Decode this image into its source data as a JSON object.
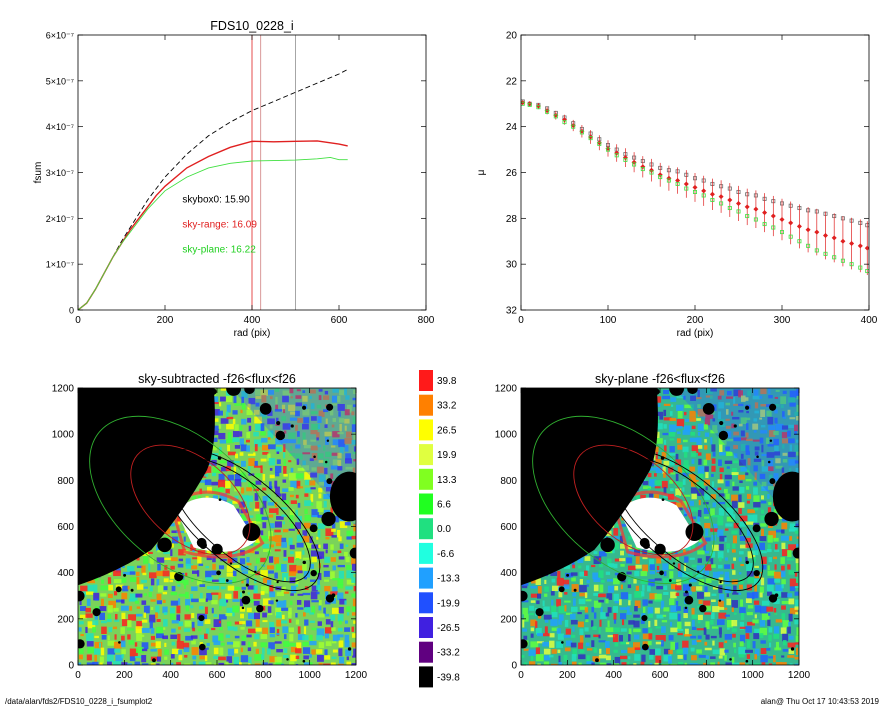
{
  "footer": {
    "path": "/data/alan/fds2/FDS10_0228_i_fsumplot2",
    "stamp": "alan@  Thu Oct 17 10:43:53 2019"
  },
  "chart_data": [
    {
      "type": "line",
      "title": "FDS10_0228_i",
      "xlabel": "rad (pix)",
      "ylabel": "fsum",
      "xlim": [
        0,
        800
      ],
      "ylim": [
        0,
        6e-07
      ],
      "xticks": [
        "0",
        "200",
        "400",
        "600",
        "800"
      ],
      "yticks": [
        "0",
        "1×10⁻⁷",
        "2×10⁻⁷",
        "3×10⁻⁷",
        "4×10⁻⁷",
        "5×10⁻⁷",
        "6×10⁻⁷"
      ],
      "vlines": [
        {
          "x": 400,
          "color": "#e02020"
        },
        {
          "x": 420,
          "color": "#d08080"
        },
        {
          "x": 500,
          "color": "#909090"
        }
      ],
      "annotations": [
        {
          "text": "skybox0: 15.90",
          "color": "#000000"
        },
        {
          "text": "sky-range: 16.09",
          "color": "#e02020"
        },
        {
          "text": "sky-plane: 16.22",
          "color": "#20d020"
        }
      ],
      "series": [
        {
          "color": "#000000",
          "dashed": true,
          "x": [
            0,
            20,
            40,
            60,
            80,
            100,
            120,
            140,
            160,
            180,
            200,
            250,
            300,
            350,
            400,
            450,
            500,
            550,
            600,
            620
          ],
          "y": [
            0,
            1.5e-08,
            4.5e-08,
            8e-08,
            1.15e-07,
            1.5e-07,
            1.8e-07,
            2.1e-07,
            2.4e-07,
            2.65e-07,
            2.9e-07,
            3.4e-07,
            3.8e-07,
            4.1e-07,
            4.35e-07,
            4.55e-07,
            4.75e-07,
            4.95e-07,
            5.15e-07,
            5.25e-07
          ]
        },
        {
          "color": "#e02020",
          "dashed": false,
          "x": [
            0,
            20,
            40,
            60,
            80,
            100,
            120,
            140,
            160,
            180,
            200,
            250,
            300,
            350,
            400,
            450,
            500,
            550,
            600,
            620
          ],
          "y": [
            0,
            1.5e-08,
            4.5e-08,
            8e-08,
            1.15e-07,
            1.45e-07,
            1.75e-07,
            2e-07,
            2.25e-07,
            2.5e-07,
            2.7e-07,
            3.1e-07,
            3.35e-07,
            3.55e-07,
            3.68e-07,
            3.67e-07,
            3.68e-07,
            3.69e-07,
            3.62e-07,
            3.58e-07
          ]
        },
        {
          "color": "#40e040",
          "dashed": false,
          "x": [
            0,
            20,
            40,
            60,
            80,
            100,
            120,
            140,
            160,
            180,
            200,
            250,
            300,
            350,
            400,
            450,
            500,
            550,
            580,
            600,
            620
          ],
          "y": [
            0,
            1.5e-08,
            4.5e-08,
            8e-08,
            1.15e-07,
            1.45e-07,
            1.7e-07,
            1.95e-07,
            2.2e-07,
            2.4e-07,
            2.6e-07,
            2.9e-07,
            3.1e-07,
            3.2e-07,
            3.25e-07,
            3.26e-07,
            3.27e-07,
            3.3e-07,
            3.33e-07,
            3.28e-07,
            3.28e-07
          ]
        }
      ]
    },
    {
      "type": "scatter",
      "title": "",
      "xlabel": "rad (pix)",
      "ylabel": "μ",
      "xlim": [
        0,
        400
      ],
      "ylim": [
        32,
        20
      ],
      "xticks": [
        "0",
        "100",
        "200",
        "300",
        "400"
      ],
      "yticks": [
        "20",
        "22",
        "24",
        "26",
        "28",
        "30",
        "32"
      ],
      "series": [
        {
          "color": "#707070",
          "marker": "square",
          "x": [
            2,
            10,
            20,
            30,
            40,
            50,
            60,
            70,
            80,
            90,
            100,
            110,
            120,
            130,
            140,
            150,
            160,
            170,
            180,
            190,
            200,
            210,
            220,
            230,
            240,
            250,
            260,
            270,
            280,
            290,
            300,
            310,
            320,
            330,
            340,
            350,
            360,
            370,
            380,
            390,
            398
          ],
          "y": [
            22.9,
            23.0,
            23.05,
            23.2,
            23.4,
            23.6,
            23.85,
            24.1,
            24.3,
            24.55,
            24.8,
            25.0,
            25.2,
            25.35,
            25.5,
            25.65,
            25.8,
            25.9,
            25.95,
            26.1,
            26.25,
            26.35,
            26.5,
            26.6,
            26.7,
            26.85,
            26.95,
            27.0,
            27.15,
            27.25,
            27.35,
            27.45,
            27.55,
            27.65,
            27.7,
            27.8,
            27.9,
            28.0,
            28.1,
            28.2,
            28.3
          ]
        },
        {
          "color": "#e02020",
          "marker": "diamond-errorbar",
          "x": [
            2,
            10,
            20,
            30,
            40,
            50,
            60,
            70,
            80,
            90,
            100,
            110,
            120,
            130,
            140,
            150,
            160,
            170,
            180,
            190,
            200,
            210,
            220,
            230,
            240,
            250,
            260,
            270,
            280,
            290,
            300,
            310,
            320,
            330,
            340,
            350,
            360,
            370,
            380,
            390,
            398
          ],
          "y": [
            22.95,
            23.0,
            23.1,
            23.3,
            23.5,
            23.7,
            23.95,
            24.2,
            24.45,
            24.7,
            24.95,
            25.15,
            25.35,
            25.55,
            25.75,
            25.9,
            26.1,
            26.25,
            26.35,
            26.5,
            26.65,
            26.8,
            26.95,
            27.05,
            27.2,
            27.35,
            27.5,
            27.6,
            27.75,
            27.9,
            28.05,
            28.2,
            28.35,
            28.5,
            28.6,
            28.75,
            28.85,
            29.0,
            29.1,
            29.2,
            29.3
          ]
        },
        {
          "color": "#40e040",
          "marker": "square",
          "x": [
            2,
            10,
            20,
            30,
            40,
            50,
            60,
            70,
            80,
            90,
            100,
            110,
            120,
            130,
            140,
            150,
            160,
            170,
            180,
            190,
            200,
            210,
            220,
            230,
            240,
            250,
            260,
            270,
            280,
            290,
            300,
            310,
            320,
            330,
            340,
            350,
            360,
            370,
            380,
            390,
            398
          ],
          "y": [
            23.0,
            23.05,
            23.15,
            23.35,
            23.55,
            23.8,
            24.0,
            24.25,
            24.5,
            24.75,
            25.0,
            25.25,
            25.45,
            25.65,
            25.85,
            26.0,
            26.2,
            26.35,
            26.5,
            26.7,
            26.85,
            27.0,
            27.2,
            27.35,
            27.55,
            27.7,
            27.9,
            28.05,
            28.25,
            28.4,
            28.6,
            28.8,
            29.0,
            29.2,
            29.4,
            29.55,
            29.7,
            29.85,
            30.0,
            30.15,
            30.3
          ]
        }
      ]
    },
    {
      "type": "heatmap",
      "title": "sky-subtracted -f26<flux<f26",
      "xlim": [
        0,
        1250
      ],
      "ylim": [
        0,
        1250
      ],
      "xticks": [
        "0",
        "200",
        "400",
        "600",
        "800",
        "1000",
        "1200"
      ],
      "yticks": [
        "0",
        "200",
        "400",
        "600",
        "800",
        "1000",
        "1200"
      ]
    },
    {
      "type": "heatmap",
      "title": "sky-plane -f26<flux<f26",
      "xlim": [
        0,
        1250
      ],
      "ylim": [
        0,
        1250
      ],
      "xticks": [
        "0",
        "200",
        "400",
        "600",
        "800",
        "1000",
        "1200"
      ],
      "yticks": [
        "0",
        "200",
        "400",
        "600",
        "800",
        "1000",
        "1200"
      ]
    }
  ],
  "colorbar": {
    "labels": [
      "39.8",
      "33.2",
      "26.5",
      "19.9",
      "13.3",
      "6.6",
      "0.0",
      "-6.6",
      "-13.3",
      "-19.9",
      "-26.5",
      "-33.2",
      "-39.8"
    ],
    "colors": [
      "#ff1a1a",
      "#ff8000",
      "#ffff00",
      "#e0ff40",
      "#80ff20",
      "#20ff20",
      "#20e080",
      "#20ffe0",
      "#20a0ff",
      "#2050ff",
      "#4020e0",
      "#600080",
      "#000000"
    ]
  }
}
